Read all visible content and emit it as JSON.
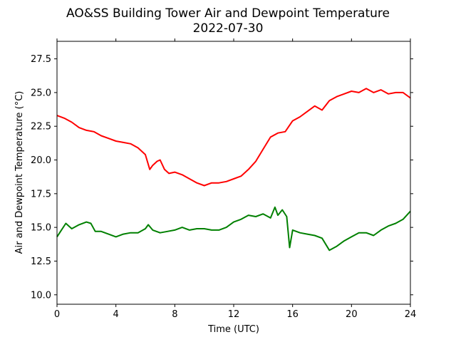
{
  "chart_data": {
    "type": "line",
    "title": "AO&SS Building Tower Air and Dewpoint Temperature",
    "subtitle": "2022-07-30",
    "xlabel": "Time (UTC)",
    "ylabel": "Air and Dewpoint Temperature (°C)",
    "xlim": [
      0,
      24
    ],
    "ylim": [
      9.3,
      28.8
    ],
    "xticks": [
      0,
      4,
      8,
      12,
      16,
      20,
      24
    ],
    "yticks": [
      10.0,
      12.5,
      15.0,
      17.5,
      20.0,
      22.5,
      25.0,
      27.5
    ],
    "ytick_labels": [
      "10.0",
      "12.5",
      "15.0",
      "17.5",
      "20.0",
      "22.5",
      "25.0",
      "27.5"
    ],
    "grid": false,
    "series": [
      {
        "color": "#ff0000",
        "x": [
          0,
          0.5,
          1,
          1.5,
          2,
          2.5,
          3,
          3.5,
          4,
          4.5,
          5,
          5.5,
          6,
          6.3,
          6.5,
          6.8,
          7,
          7.3,
          7.6,
          8,
          8.5,
          9,
          9.5,
          10,
          10.5,
          11,
          11.5,
          12,
          12.5,
          13,
          13.5,
          14,
          14.5,
          15,
          15.5,
          16,
          16.5,
          17,
          17.5,
          18,
          18.5,
          19,
          19.5,
          20,
          20.5,
          21,
          21.5,
          22,
          22.5,
          23,
          23.5,
          24
        ],
        "y": [
          23.3,
          23.1,
          22.8,
          22.4,
          22.2,
          22.1,
          21.8,
          21.6,
          21.4,
          21.3,
          21.2,
          20.9,
          20.4,
          19.3,
          19.6,
          19.9,
          20.0,
          19.3,
          19.0,
          19.1,
          18.9,
          18.6,
          18.3,
          18.1,
          18.3,
          18.3,
          18.4,
          18.6,
          18.8,
          19.3,
          19.9,
          20.8,
          21.7,
          22.0,
          22.1,
          22.9,
          23.2,
          23.6,
          24.0,
          23.7,
          24.4,
          24.7,
          24.9,
          25.1,
          25.0,
          25.3,
          25.0,
          25.2,
          24.9,
          25.0,
          25.0,
          24.6
        ]
      },
      {
        "color": "#008000",
        "x": [
          0,
          0.3,
          0.6,
          1,
          1.5,
          2,
          2.3,
          2.6,
          3,
          3.5,
          4,
          4.5,
          5,
          5.5,
          6,
          6.2,
          6.5,
          7,
          7.5,
          8,
          8.5,
          9,
          9.5,
          10,
          10.5,
          11,
          11.5,
          12,
          12.5,
          13,
          13.5,
          14,
          14.5,
          14.8,
          15,
          15.3,
          15.6,
          15.8,
          16,
          16.5,
          17,
          17.5,
          18,
          18.5,
          19,
          19.5,
          20,
          20.5,
          21,
          21.5,
          22,
          22.5,
          23,
          23.5,
          24
        ],
        "y": [
          14.3,
          14.8,
          15.3,
          14.9,
          15.2,
          15.4,
          15.3,
          14.7,
          14.7,
          14.5,
          14.3,
          14.5,
          14.6,
          14.6,
          14.9,
          15.2,
          14.8,
          14.6,
          14.7,
          14.8,
          15.0,
          14.8,
          14.9,
          14.9,
          14.8,
          14.8,
          15.0,
          15.4,
          15.6,
          15.9,
          15.8,
          16.0,
          15.7,
          16.5,
          15.9,
          16.3,
          15.8,
          13.5,
          14.8,
          14.6,
          14.5,
          14.4,
          14.2,
          13.3,
          13.6,
          14.0,
          14.3,
          14.6,
          14.6,
          14.4,
          14.8,
          15.1,
          15.3,
          15.6,
          16.2
        ]
      }
    ]
  }
}
